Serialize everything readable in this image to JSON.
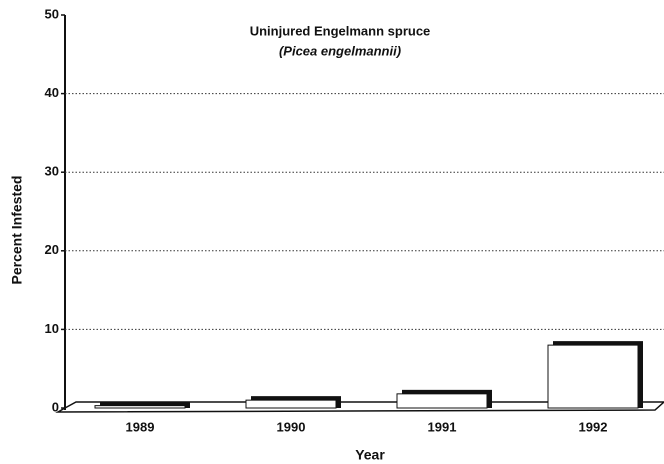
{
  "chart_data": {
    "type": "bar",
    "title": "Uninjured Engelmann spruce",
    "subtitle": "(Picea engelmannii)",
    "x_label": "Year",
    "y_label": "Percent Infested",
    "categories": [
      "1989",
      "1990",
      "1991",
      "1992"
    ],
    "values": [
      0.3,
      1,
      1.8,
      8
    ],
    "color": "#ffffff",
    "ylim": [
      0,
      50
    ],
    "yticks": [
      0,
      10,
      20,
      30,
      40,
      50
    ],
    "grid": true
  }
}
